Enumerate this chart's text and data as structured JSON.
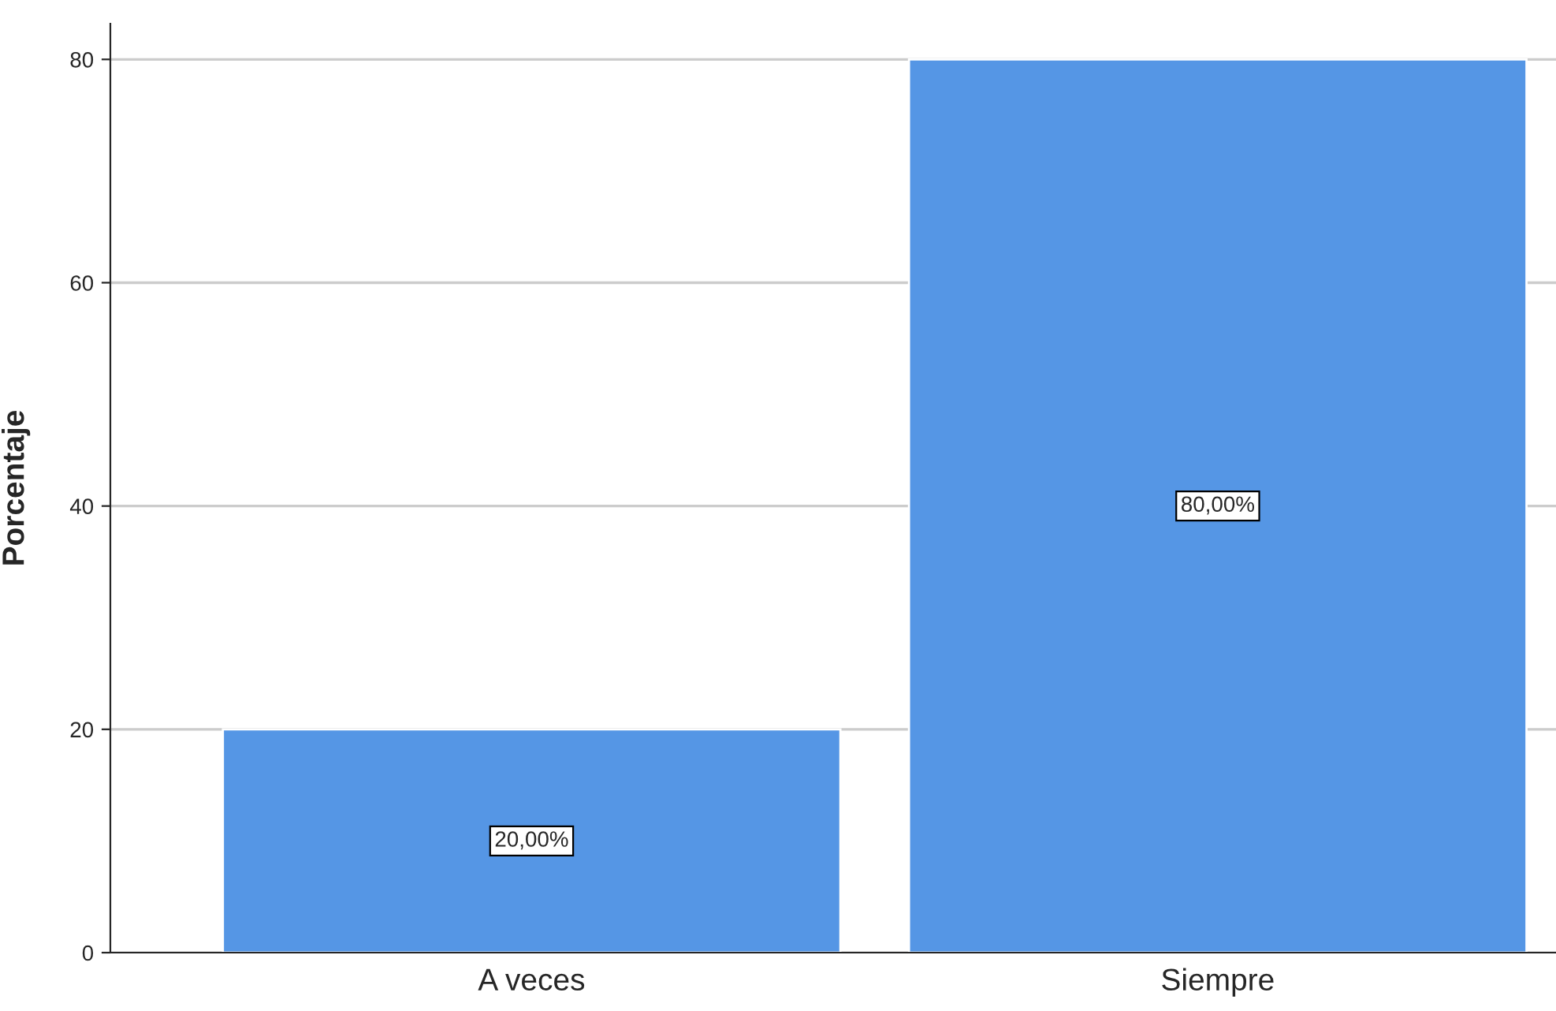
{
  "chart_data": {
    "type": "bar",
    "ylabel": "Porcentaje",
    "categories": [
      "A veces",
      "Siempre"
    ],
    "values": [
      20,
      80
    ],
    "value_labels": [
      "20,00%",
      "80,00%"
    ],
    "color": "#5596e5",
    "ylim": [
      0,
      83.2
    ],
    "yticks": [
      0,
      20,
      40,
      60,
      80
    ],
    "grid": "y"
  }
}
